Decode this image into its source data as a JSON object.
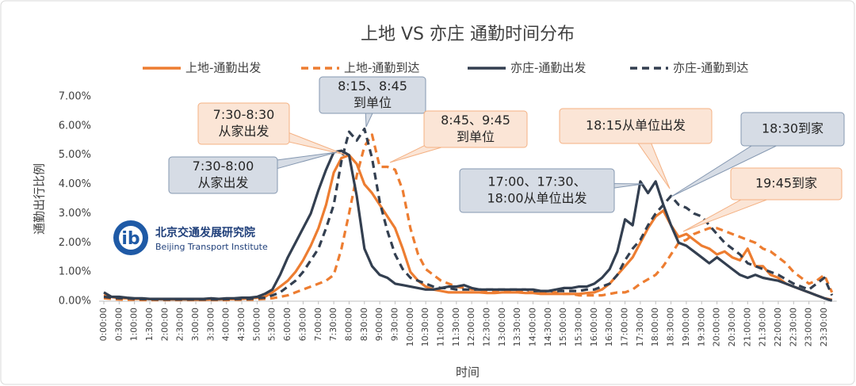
{
  "chart_data": {
    "type": "line",
    "title": "上地 VS 亦庄 通勤时间分布",
    "x_label": "时间",
    "y_label": "通勤出行比例",
    "categories": [
      "0:00:00",
      null,
      "0:30:00",
      null,
      "1:00:00",
      null,
      "1:30:00",
      null,
      "2:00:00",
      null,
      "2:30:00",
      null,
      "3:00:00",
      null,
      "3:30:00",
      null,
      "4:00:00",
      null,
      "4:30:00",
      null,
      "5:00:00",
      null,
      "5:30:00",
      null,
      "6:00:00",
      null,
      "6:30:00",
      null,
      "7:00:00",
      null,
      "7:30:00",
      null,
      "8:00:00",
      null,
      "8:30:00",
      null,
      "9:00:00",
      null,
      "9:30:00",
      null,
      "10:00:00",
      null,
      "10:30:00",
      null,
      "11:00:00",
      null,
      "11:30:00",
      null,
      "12:00:00",
      null,
      "12:30:00",
      null,
      "13:00:00",
      null,
      "13:30:00",
      null,
      "14:00:00",
      null,
      "14:30:00",
      null,
      "15:00:00",
      null,
      "15:30:00",
      null,
      "16:00:00",
      null,
      "16:30:00",
      null,
      "17:00:00",
      null,
      "17:30:00",
      null,
      "18:00:00",
      null,
      "18:30:00",
      null,
      "19:00:00",
      null,
      "19:30:00",
      null,
      "20:00:00",
      null,
      "20:30:00",
      null,
      "21:00:00",
      null,
      "21:30:00",
      null,
      "22:00:00",
      null,
      "22:30:00",
      null,
      "23:00:00",
      null,
      "23:30:00",
      null
    ],
    "ylim": [
      0,
      7
    ],
    "yticks": [
      {
        "value": 0,
        "label": "0.00%"
      },
      {
        "value": 1,
        "label": "1.00%"
      },
      {
        "value": 2,
        "label": "2.00%"
      },
      {
        "value": 3,
        "label": "3.00%"
      },
      {
        "value": 4,
        "label": "4.00%"
      },
      {
        "value": 5,
        "label": "5.00%"
      },
      {
        "value": 6,
        "label": "6.00%"
      },
      {
        "value": 7,
        "label": "7.00%"
      }
    ],
    "grid": false,
    "series": [
      {
        "name": "上地-通勤出发",
        "color": "#ed7d31",
        "dashed": false,
        "values": [
          0.2,
          0.15,
          0.1,
          0.1,
          0.08,
          0.08,
          0.07,
          0.07,
          0.06,
          0.06,
          0.06,
          0.06,
          0.05,
          0.05,
          0.06,
          0.06,
          0.07,
          0.07,
          0.08,
          0.1,
          0.12,
          0.15,
          0.3,
          0.5,
          0.7,
          1.0,
          1.4,
          1.9,
          2.5,
          3.3,
          4.4,
          4.9,
          5.0,
          4.7,
          4.0,
          3.7,
          3.3,
          2.9,
          2.5,
          1.8,
          1.0,
          0.7,
          0.5,
          0.4,
          0.35,
          0.3,
          0.3,
          0.3,
          0.3,
          0.3,
          0.28,
          0.28,
          0.3,
          0.3,
          0.3,
          0.28,
          0.28,
          0.25,
          0.25,
          0.25,
          0.25,
          0.25,
          0.25,
          0.28,
          0.3,
          0.4,
          0.6,
          0.9,
          1.2,
          1.5,
          2.0,
          2.5,
          2.9,
          3.1,
          2.6,
          2.2,
          2.3,
          2.1,
          1.9,
          1.8,
          1.6,
          1.7,
          1.5,
          1.4,
          1.8,
          1.2,
          1.2,
          0.9,
          0.8,
          0.6,
          0.5,
          0.4,
          0.3,
          0.2,
          0.1,
          0.05
        ]
      },
      {
        "name": "上地-通勤到达",
        "color": "#ed7d31",
        "dashed": true,
        "values": [
          0.1,
          0.08,
          0.06,
          0.05,
          0.05,
          0.04,
          0.04,
          0.04,
          0.04,
          0.04,
          0.04,
          0.04,
          0.04,
          0.04,
          0.04,
          0.04,
          0.04,
          0.05,
          0.05,
          0.05,
          0.06,
          0.08,
          0.1,
          0.15,
          0.2,
          0.3,
          0.4,
          0.5,
          0.6,
          0.7,
          0.9,
          1.8,
          3.0,
          4.3,
          5.3,
          5.7,
          4.6,
          4.6,
          4.5,
          3.8,
          2.5,
          1.6,
          1.1,
          0.9,
          0.7,
          0.6,
          0.5,
          0.45,
          0.4,
          0.4,
          0.35,
          0.35,
          0.35,
          0.35,
          0.35,
          0.3,
          0.3,
          0.3,
          0.3,
          0.3,
          0.25,
          0.25,
          0.2,
          0.2,
          0.2,
          0.2,
          0.25,
          0.3,
          0.3,
          0.4,
          0.6,
          0.75,
          0.9,
          1.2,
          1.6,
          2.0,
          2.1,
          2.3,
          2.4,
          2.5,
          2.5,
          2.4,
          2.3,
          2.2,
          2.1,
          2.0,
          1.8,
          1.7,
          1.5,
          1.3,
          1.0,
          0.8,
          0.6,
          0.7,
          0.9,
          0.3
        ]
      },
      {
        "name": "亦庄-通勤出发",
        "color": "#333f50",
        "dashed": false,
        "values": [
          0.3,
          0.15,
          0.15,
          0.12,
          0.1,
          0.1,
          0.08,
          0.08,
          0.08,
          0.08,
          0.08,
          0.08,
          0.08,
          0.08,
          0.1,
          0.08,
          0.1,
          0.1,
          0.12,
          0.12,
          0.15,
          0.25,
          0.4,
          0.9,
          1.5,
          2.0,
          2.5,
          3.0,
          3.8,
          4.5,
          5.1,
          5.15,
          5.0,
          3.6,
          1.8,
          1.2,
          0.9,
          0.8,
          0.6,
          0.55,
          0.5,
          0.45,
          0.4,
          0.4,
          0.45,
          0.5,
          0.5,
          0.55,
          0.45,
          0.4,
          0.4,
          0.4,
          0.4,
          0.4,
          0.4,
          0.4,
          0.4,
          0.35,
          0.35,
          0.4,
          0.45,
          0.45,
          0.5,
          0.5,
          0.6,
          0.8,
          1.1,
          1.7,
          2.8,
          2.6,
          4.1,
          3.7,
          4.1,
          3.3,
          2.6,
          2.0,
          1.9,
          1.7,
          1.5,
          1.3,
          1.5,
          1.3,
          1.1,
          0.9,
          0.8,
          0.9,
          0.8,
          0.75,
          0.7,
          0.6,
          0.5,
          0.4,
          0.3,
          0.2,
          0.1,
          0.02
        ]
      },
      {
        "name": "亦庄-通勤到达",
        "color": "#333f50",
        "dashed": true,
        "values": [
          0.15,
          0.12,
          0.1,
          0.1,
          0.08,
          0.07,
          0.07,
          0.06,
          0.06,
          0.06,
          0.06,
          0.06,
          0.06,
          0.06,
          0.06,
          0.06,
          0.07,
          0.07,
          0.08,
          0.08,
          0.1,
          0.12,
          0.2,
          0.3,
          0.5,
          0.7,
          1.0,
          1.4,
          1.8,
          2.5,
          3.3,
          4.8,
          5.8,
          5.5,
          5.9,
          4.9,
          3.4,
          2.4,
          1.6,
          1.1,
          0.8,
          0.7,
          0.6,
          0.5,
          0.45,
          0.45,
          0.4,
          0.4,
          0.4,
          0.4,
          0.4,
          0.4,
          0.4,
          0.4,
          0.4,
          0.4,
          0.35,
          0.35,
          0.35,
          0.35,
          0.35,
          0.35,
          0.35,
          0.4,
          0.4,
          0.5,
          0.6,
          0.9,
          1.4,
          1.8,
          2.1,
          2.6,
          3.0,
          3.3,
          3.6,
          3.3,
          3.2,
          3.0,
          2.9,
          2.6,
          2.3,
          2.0,
          1.8,
          1.6,
          1.3,
          1.2,
          1.1,
          1.0,
          0.9,
          0.75,
          0.6,
          0.5,
          0.4,
          0.6,
          0.8,
          0.2
        ]
      }
    ],
    "annotations": [
      {
        "lines": [
          "7:30-8:30",
          "从家出发"
        ],
        "style": "orange"
      },
      {
        "lines": [
          "8:15、8:45",
          "到单位"
        ],
        "style": "navy"
      },
      {
        "lines": [
          "8:45、9:45",
          "到单位"
        ],
        "style": "orange"
      },
      {
        "lines": [
          "7:30-8:00",
          "从家出发"
        ],
        "style": "navy"
      },
      {
        "lines": [
          "18:15从单位出发"
        ],
        "style": "orange"
      },
      {
        "lines": [
          "18:30到家"
        ],
        "style": "navy"
      },
      {
        "lines": [
          "17:00、17:30、",
          "18:00从单位出发"
        ],
        "style": "navy"
      },
      {
        "lines": [
          "19:45到家"
        ],
        "style": "orange"
      }
    ],
    "logo": {
      "name": "北京交通发展研究院",
      "english": "Beijing Transport Institute"
    }
  }
}
